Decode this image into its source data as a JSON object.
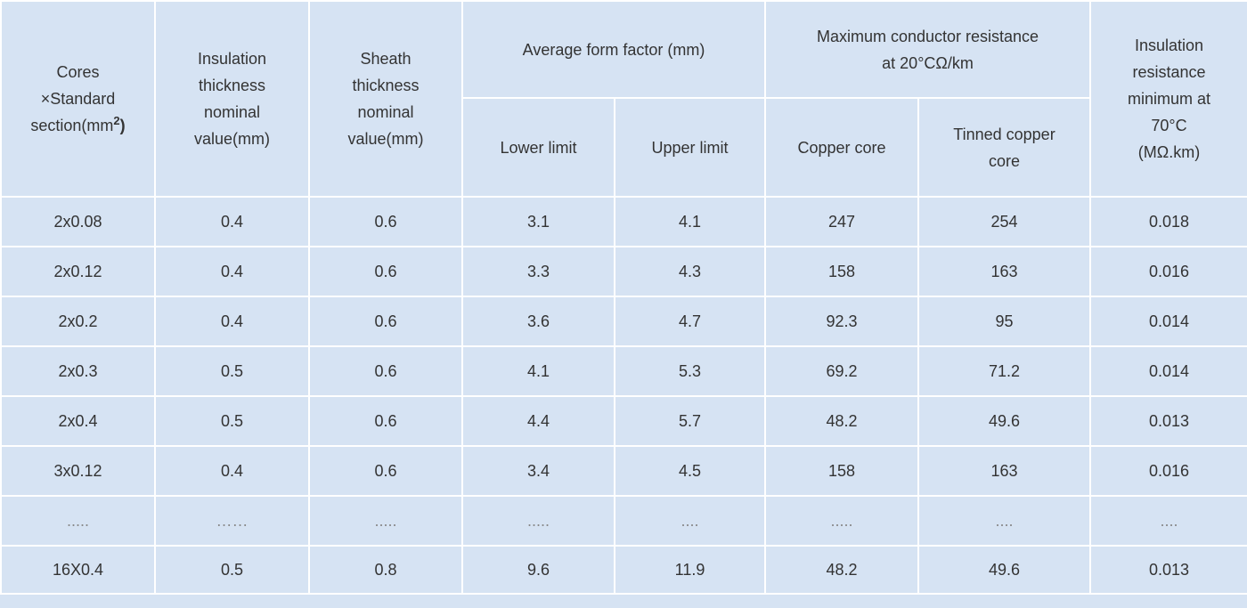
{
  "table": {
    "headers": {
      "cores_section_line1": "Cores\n×Standard\nsection(mm",
      "cores_section_sup": "2",
      "cores_section_close": ")",
      "insulation_thickness": "Insulation\nthickness\nnominal\nvalue(mm)",
      "sheath_thickness": "Sheath\nthickness\nnominal\nvalue(mm)",
      "avg_form_factor": "Average form factor (mm)",
      "lower_limit": "Lower limit",
      "upper_limit": "Upper limit",
      "max_conductor_resistance": "Maximum conductor resistance\nat 20°CΩ/km",
      "copper_core": "Copper core",
      "tinned_copper_core": "Tinned copper\ncore",
      "insulation_resistance": "Insulation\nresistance\nminimum at\n70°C\n(MΩ.km)"
    },
    "rows": [
      [
        "2x0.08",
        "0.4",
        "0.6",
        "3.1",
        "4.1",
        "247",
        "254",
        "0.018"
      ],
      [
        "2x0.12",
        "0.4",
        "0.6",
        "3.3",
        "4.3",
        "158",
        "163",
        "0.016"
      ],
      [
        "2x0.2",
        "0.4",
        "0.6",
        "3.6",
        "4.7",
        "92.3",
        "95",
        "0.014"
      ],
      [
        "2x0.3",
        "0.5",
        "0.6",
        "4.1",
        "5.3",
        "69.2",
        "71.2",
        "0.014"
      ],
      [
        "2x0.4",
        "0.5",
        "0.6",
        "4.4",
        "5.7",
        "48.2",
        "49.6",
        "0.013"
      ],
      [
        "3x0.12",
        "0.4",
        "0.6",
        "3.4",
        "4.5",
        "158",
        "163",
        "0.016"
      ],
      [
        ".....",
        "……",
        ".....",
        ".....",
        "....",
        ".....",
        "....",
        "...."
      ],
      [
        "16X0.4",
        "0.5",
        "0.8",
        "9.6",
        "11.9",
        "48.2",
        "49.6",
        "0.013"
      ]
    ]
  }
}
